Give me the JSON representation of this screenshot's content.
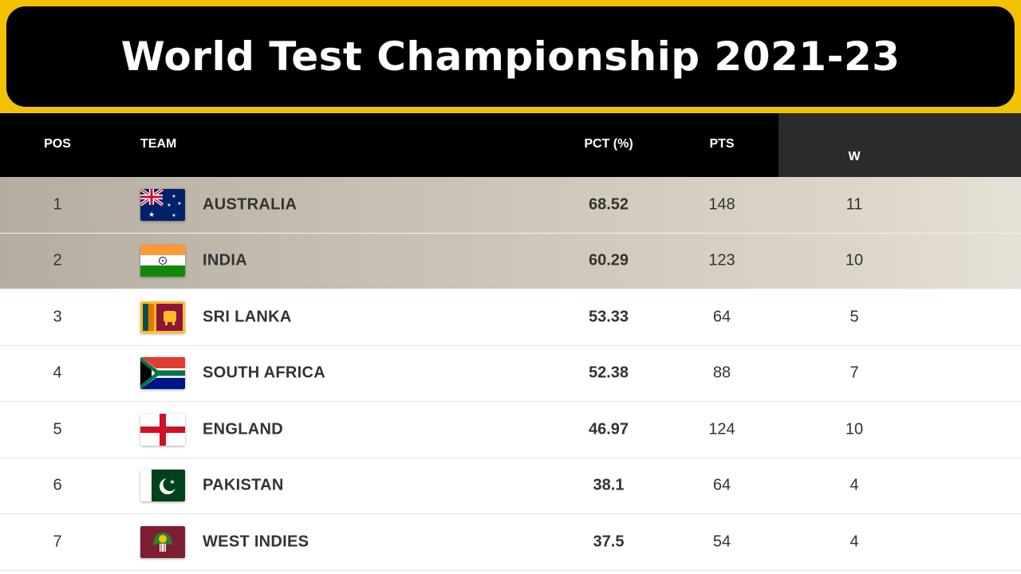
{
  "title": "World Test Championship 2021-23",
  "columns": {
    "pos": "POS",
    "team": "TEAM",
    "pct": "PCT (%)",
    "pts": "PTS",
    "w": "W"
  },
  "rows": [
    {
      "pos": "1",
      "team": "AUSTRALIA",
      "pct": "68.52",
      "pts": "148",
      "w": "11",
      "flag": "australia-flag-icon"
    },
    {
      "pos": "2",
      "team": "INDIA",
      "pct": "60.29",
      "pts": "123",
      "w": "10",
      "flag": "india-flag-icon"
    },
    {
      "pos": "3",
      "team": "SRI LANKA",
      "pct": "53.33",
      "pts": "64",
      "w": "5",
      "flag": "sri-lanka-flag-icon"
    },
    {
      "pos": "4",
      "team": "SOUTH AFRICA",
      "pct": "52.38",
      "pts": "88",
      "w": "7",
      "flag": "south-africa-flag-icon"
    },
    {
      "pos": "5",
      "team": "ENGLAND",
      "pct": "46.97",
      "pts": "124",
      "w": "10",
      "flag": "england-flag-icon"
    },
    {
      "pos": "6",
      "team": "PAKISTAN",
      "pct": "38.1",
      "pts": "64",
      "w": "4",
      "flag": "pakistan-flag-icon"
    },
    {
      "pos": "7",
      "team": "WEST INDIES",
      "pct": "37.5",
      "pts": "54",
      "w": "4",
      "flag": "west-indies-flag-icon"
    }
  ],
  "colors": {
    "banner_border": "#f2c300",
    "banner_bg": "#000000",
    "header_bg": "#000000",
    "qualified_row": "#cbc4b6"
  }
}
